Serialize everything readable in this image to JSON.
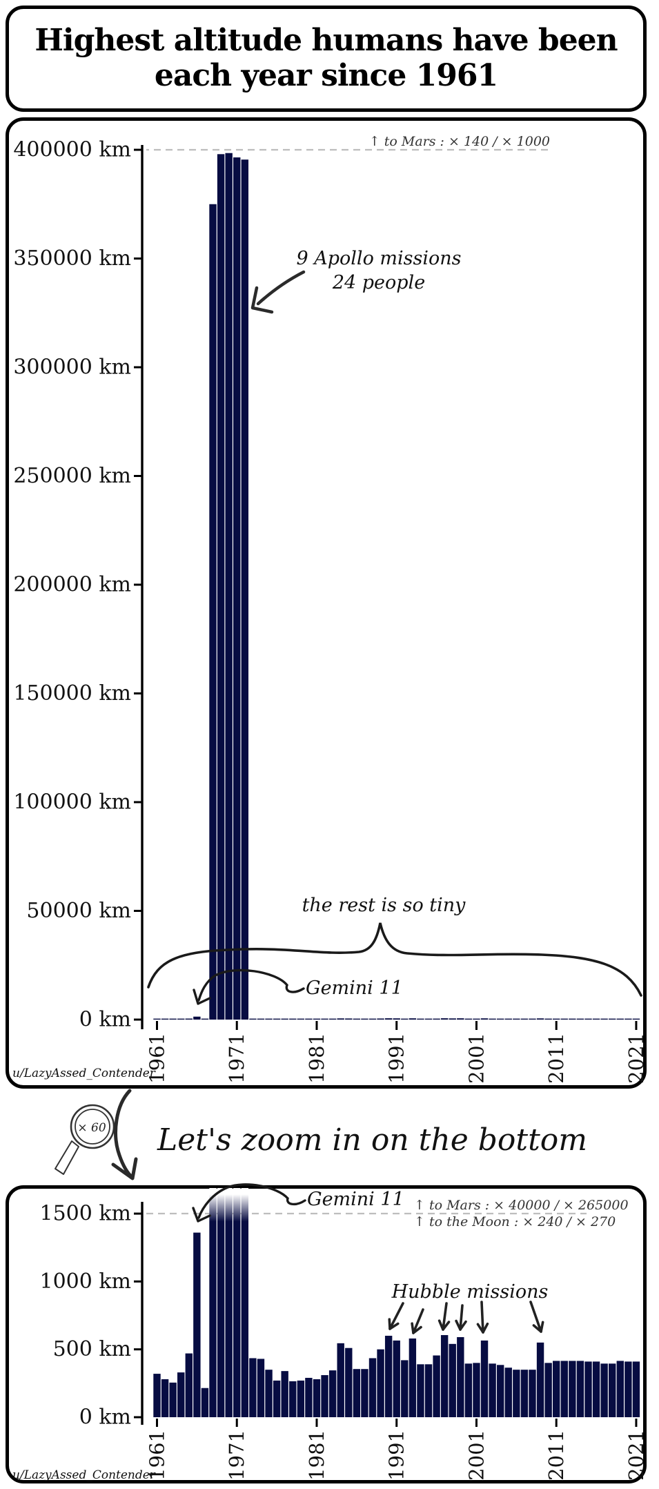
{
  "title": {
    "line1": "Highest altitude humans have been",
    "line2": "each year since 1961"
  },
  "watermark": "u/LazyAssed_Contender",
  "transition": {
    "magnifier_label": "× 60",
    "caption": "Let's zoom in on the bottom"
  },
  "colors": {
    "bar": "#070c42",
    "ink": "#1a1a1a",
    "gridline": "#bdbdbd",
    "annotation_gray": "#333333"
  },
  "chart_data": {
    "type": "bar",
    "title": "Highest altitude humans have been each year since 1961",
    "years": [
      1961,
      1962,
      1963,
      1964,
      1965,
      1966,
      1967,
      1968,
      1969,
      1970,
      1971,
      1972,
      1973,
      1974,
      1975,
      1976,
      1977,
      1978,
      1979,
      1980,
      1981,
      1982,
      1983,
      1984,
      1985,
      1986,
      1987,
      1988,
      1989,
      1990,
      1991,
      1992,
      1993,
      1994,
      1995,
      1996,
      1997,
      1998,
      1999,
      2000,
      2001,
      2002,
      2003,
      2004,
      2005,
      2006,
      2007,
      2008,
      2009,
      2010,
      2011,
      2012,
      2013,
      2014,
      2015,
      2016,
      2017,
      2018,
      2019,
      2020,
      2021
    ],
    "altitude_km": [
      320,
      280,
      255,
      330,
      470,
      1360,
      215,
      375000,
      398000,
      398500,
      396500,
      395500,
      435,
      430,
      350,
      270,
      340,
      265,
      270,
      290,
      280,
      310,
      345,
      545,
      510,
      355,
      355,
      435,
      500,
      600,
      565,
      420,
      580,
      390,
      390,
      455,
      605,
      540,
      590,
      395,
      400,
      565,
      395,
      385,
      365,
      350,
      350,
      350,
      550,
      400,
      415,
      415,
      415,
      415,
      410,
      410,
      395,
      395,
      415,
      410,
      410
    ],
    "panels": [
      {
        "name": "full-scale",
        "ylim": [
          0,
          400000
        ],
        "ytick_labels": [
          "0 km",
          "50000 km",
          "100000 km",
          "150000 km",
          "200000 km",
          "250000 km",
          "300000 km",
          "350000 km",
          "400000 km"
        ],
        "xtick_labels": [
          "1961",
          "1971",
          "1981",
          "1991",
          "2001",
          "2011",
          "2021"
        ],
        "gridline_at": 400000,
        "annotations": {
          "mars_note": "↑  to Mars : × 140 / × 1000",
          "apollo_note_line1": "9 Apollo missions",
          "apollo_note_line2": "24 people",
          "tiny_note": "the rest is so tiny",
          "gemini_note": "Gemini 11"
        }
      },
      {
        "name": "zoomed-bottom",
        "zoom_factor": "× 60",
        "ylim": [
          0,
          1560
        ],
        "ytick_labels": [
          "0 km",
          "500 km",
          "1000 km",
          "1500 km"
        ],
        "xtick_labels": [
          "1961",
          "1971",
          "1981",
          "1991",
          "2001",
          "2011",
          "2021"
        ],
        "gridline_at": 1500,
        "clipped_years": [
          1968,
          1969,
          1970,
          1971,
          1972
        ],
        "hubble_years": [
          1990,
          1993,
          1997,
          1999,
          2002,
          2009
        ],
        "annotations": {
          "mars_note": "↑  to Mars : × 40000 / × 265000",
          "moon_note": "↑  to the Moon : × 240 / × 270",
          "gemini_note": "Gemini 11",
          "hubble_note": "Hubble missions"
        }
      }
    ]
  }
}
